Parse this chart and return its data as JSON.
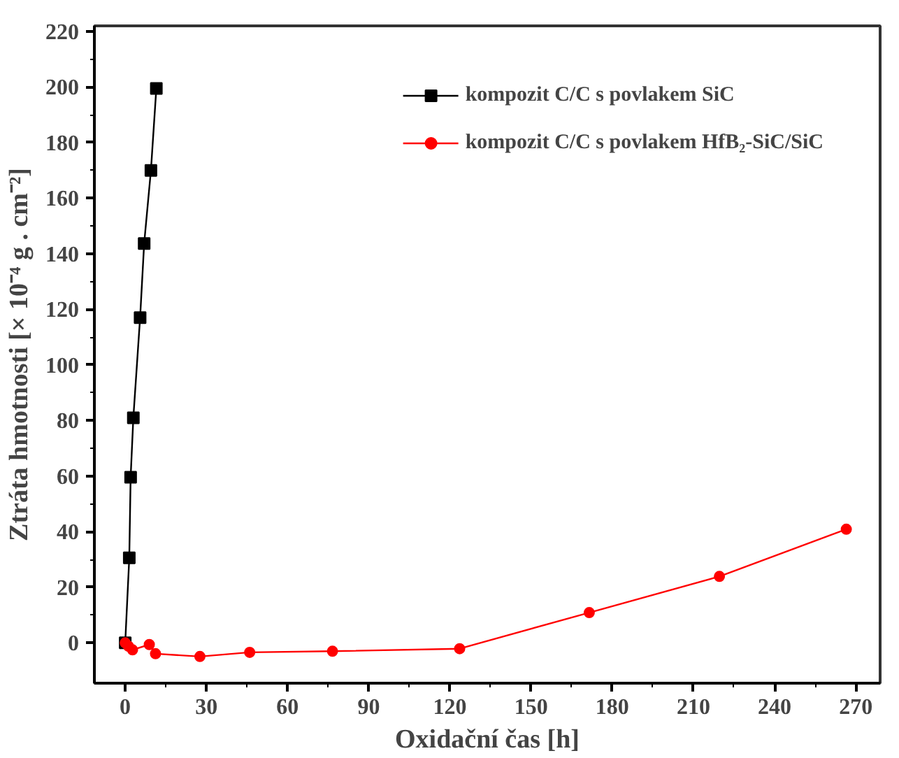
{
  "chart_data": {
    "type": "line",
    "xlabel": "Oxidační čas [h]",
    "ylabel": "Ztráta hmotnosti [× 10⁻⁴ g . cm⁻²]",
    "series": [
      {
        "name": "kompozit C/C s povlakem SiC",
        "color": "#000000",
        "marker": "square",
        "x": [
          0,
          1.5,
          2,
          3,
          5.5,
          7,
          9.5,
          11.5
        ],
        "values": [
          0,
          30.6,
          59.6,
          81,
          117,
          143.7,
          170,
          199.5
        ]
      },
      {
        "name": "kompozit C/C s povlakem HfB₂-SiC/SiC",
        "color": "#ff0000",
        "marker": "circle",
        "x": [
          0,
          1.2,
          2.7,
          8.9,
          11.2,
          27.6,
          46,
          76.6,
          123.6,
          171.5,
          219.6,
          266.5
        ],
        "values": [
          0,
          -1.2,
          -2.5,
          -0.6,
          -3.9,
          -4.9,
          -3.4,
          -3,
          -2.1,
          10.9,
          23.9,
          40.9
        ]
      }
    ],
    "xlim": [
      -11.4,
      279
    ],
    "ylim": [
      -14.5,
      222
    ],
    "xticks": [
      0,
      30,
      60,
      90,
      120,
      150,
      180,
      210,
      240,
      270
    ],
    "yticks": [
      0,
      20,
      40,
      60,
      80,
      100,
      120,
      140,
      160,
      180,
      200,
      220
    ],
    "grid": false,
    "legend": "top right",
    "line_style": "solid"
  }
}
